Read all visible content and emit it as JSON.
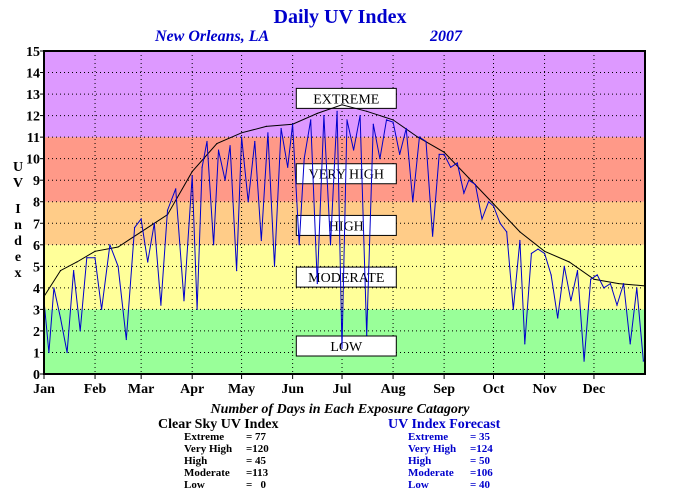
{
  "chart_data": {
    "type": "line",
    "title": "Daily UV Index",
    "location": "New Orleans, LA",
    "year": "2007",
    "ylabel": "UV Index",
    "xlabel": "",
    "ylim": [
      0,
      15
    ],
    "xlim": [
      0,
      365
    ],
    "y_ticks": [
      0,
      1,
      2,
      3,
      4,
      5,
      6,
      7,
      8,
      9,
      10,
      11,
      12,
      13,
      14,
      15
    ],
    "x_tick_labels": [
      "Jan",
      "Feb",
      "Mar",
      "Apr",
      "May",
      "Jun",
      "Jul",
      "Aug",
      "Sep",
      "Oct",
      "Nov",
      "Dec"
    ],
    "x_tick_days": [
      0,
      31,
      59,
      90,
      120,
      151,
      181,
      212,
      243,
      273,
      304,
      334
    ],
    "grid": true,
    "bands": [
      {
        "label": "LOW",
        "min": 0,
        "max": 3,
        "color": "#99ff99"
      },
      {
        "label": "MODERATE",
        "min": 3,
        "max": 6,
        "color": "#ffff99"
      },
      {
        "label": "HIGH",
        "min": 6,
        "max": 8,
        "color": "#ffcc88"
      },
      {
        "label": "VERY HIGH",
        "min": 8,
        "max": 11,
        "color": "#ff9988"
      },
      {
        "label": "EXTREME",
        "min": 11,
        "max": 15,
        "color": "#dd99ff"
      }
    ],
    "series": [
      {
        "role": "clear-sky",
        "color": "#000000",
        "x": [
          0,
          10,
          20,
          31,
          45,
          59,
          75,
          90,
          105,
          120,
          135,
          151,
          166,
          181,
          196,
          212,
          227,
          243,
          258,
          273,
          289,
          304,
          319,
          334,
          349,
          364
        ],
        "values": [
          3.6,
          4.8,
          5.2,
          5.7,
          5.9,
          6.6,
          7.4,
          9.4,
          10.7,
          11.2,
          11.5,
          11.6,
          12.1,
          12.5,
          12.2,
          11.8,
          11.0,
          10.3,
          9.1,
          7.9,
          6.6,
          5.7,
          5.2,
          4.4,
          4.2,
          4.1
        ]
      },
      {
        "role": "forecast",
        "color": "#0000cc",
        "x": [
          0,
          3,
          6,
          10,
          14,
          18,
          22,
          26,
          31,
          35,
          40,
          45,
          50,
          55,
          59,
          63,
          67,
          71,
          75,
          80,
          85,
          90,
          93,
          96,
          99,
          103,
          106,
          110,
          113,
          117,
          120,
          124,
          128,
          132,
          136,
          140,
          144,
          148,
          151,
          155,
          158,
          162,
          166,
          170,
          174,
          178,
          181,
          184,
          188,
          192,
          196,
          200,
          204,
          208,
          212,
          216,
          220,
          224,
          228,
          232,
          236,
          240,
          243,
          247,
          251,
          255,
          258,
          262,
          266,
          270,
          273,
          277,
          281,
          285,
          289,
          292,
          296,
          300,
          304,
          308,
          312,
          316,
          320,
          324,
          328,
          332,
          336,
          340,
          344,
          348,
          352,
          356,
          360,
          364
        ],
        "values": [
          3.4,
          1.0,
          4.0,
          2.6,
          1.0,
          4.8,
          2.0,
          5.4,
          5.4,
          3.0,
          6.0,
          5.0,
          1.6,
          6.8,
          7.2,
          5.2,
          7.0,
          3.2,
          7.6,
          8.6,
          3.4,
          9.2,
          3.0,
          9.6,
          10.8,
          6.0,
          10.4,
          9.0,
          10.6,
          4.8,
          11.0,
          8.0,
          10.8,
          6.2,
          11.2,
          5.0,
          11.4,
          9.6,
          11.6,
          6.0,
          10.0,
          11.8,
          4.2,
          12.0,
          6.0,
          12.2,
          1.2,
          11.8,
          10.4,
          12.0,
          1.8,
          11.6,
          10.0,
          11.8,
          11.7,
          10.2,
          11.4,
          8.0,
          11.0,
          10.8,
          6.4,
          10.2,
          10.2,
          9.6,
          9.8,
          8.4,
          9.0,
          8.8,
          7.2,
          8.0,
          7.8,
          7.0,
          6.6,
          3.0,
          6.2,
          1.4,
          5.6,
          5.8,
          5.6,
          4.6,
          2.6,
          5.0,
          3.4,
          4.8,
          0.6,
          4.4,
          4.6,
          4.0,
          4.2,
          3.2,
          4.2,
          1.4,
          4.0,
          0.6
        ]
      }
    ]
  },
  "bottom": {
    "heading": "Number of Days in Each Exposure Catagory",
    "clear_sky": {
      "title": "Clear Sky UV Index",
      "rows": [
        {
          "label": "Extreme",
          "value": "= 77"
        },
        {
          "label": "Very High",
          "value": "=120"
        },
        {
          "label": "High",
          "value": "= 45"
        },
        {
          "label": "Moderate",
          "value": "=113"
        },
        {
          "label": "Low",
          "value": "=   0"
        }
      ]
    },
    "forecast": {
      "title": "UV Index Forecast",
      "rows": [
        {
          "label": "Extreme",
          "value": "= 35"
        },
        {
          "label": "Very High",
          "value": "=124"
        },
        {
          "label": "High",
          "value": "= 50"
        },
        {
          "label": "Moderate",
          "value": "=106"
        },
        {
          "label": "Low",
          "value": "= 40"
        }
      ]
    }
  }
}
